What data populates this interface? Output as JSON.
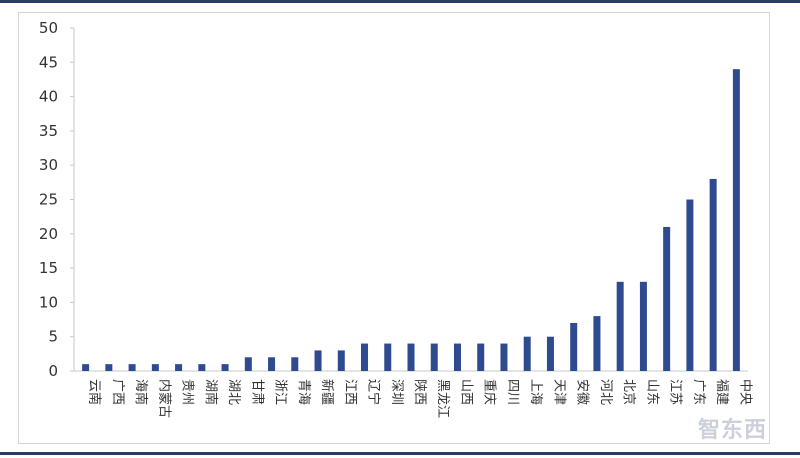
{
  "colors": {
    "bar": "#2f4b8f",
    "rule": "#2b3a67",
    "axis": "#c8c8c8",
    "text": "#333333"
  },
  "watermark": "智东西",
  "chart_data": {
    "type": "bar",
    "title": "",
    "xlabel": "",
    "ylabel": "",
    "ylim": [
      0,
      50
    ],
    "yticks": [
      0,
      5,
      10,
      15,
      20,
      25,
      30,
      35,
      40,
      45,
      50
    ],
    "grid": false,
    "legend": "none",
    "categories": [
      "云南",
      "广西",
      "海南",
      "内蒙古",
      "贵州",
      "湖南",
      "湖北",
      "甘肃",
      "浙江",
      "青海",
      "新疆",
      "江西",
      "辽宁",
      "深圳",
      "陕西",
      "黑龙江",
      "山西",
      "重庆",
      "四川",
      "上海",
      "天津",
      "安徽",
      "河北",
      "北京",
      "山东",
      "江苏",
      "广东",
      "福建",
      "中央"
    ],
    "values": [
      1,
      1,
      1,
      1,
      1,
      1,
      1,
      2,
      2,
      2,
      3,
      3,
      4,
      4,
      4,
      4,
      4,
      4,
      4,
      5,
      5,
      7,
      8,
      13,
      13,
      21,
      25,
      28,
      44
    ]
  }
}
